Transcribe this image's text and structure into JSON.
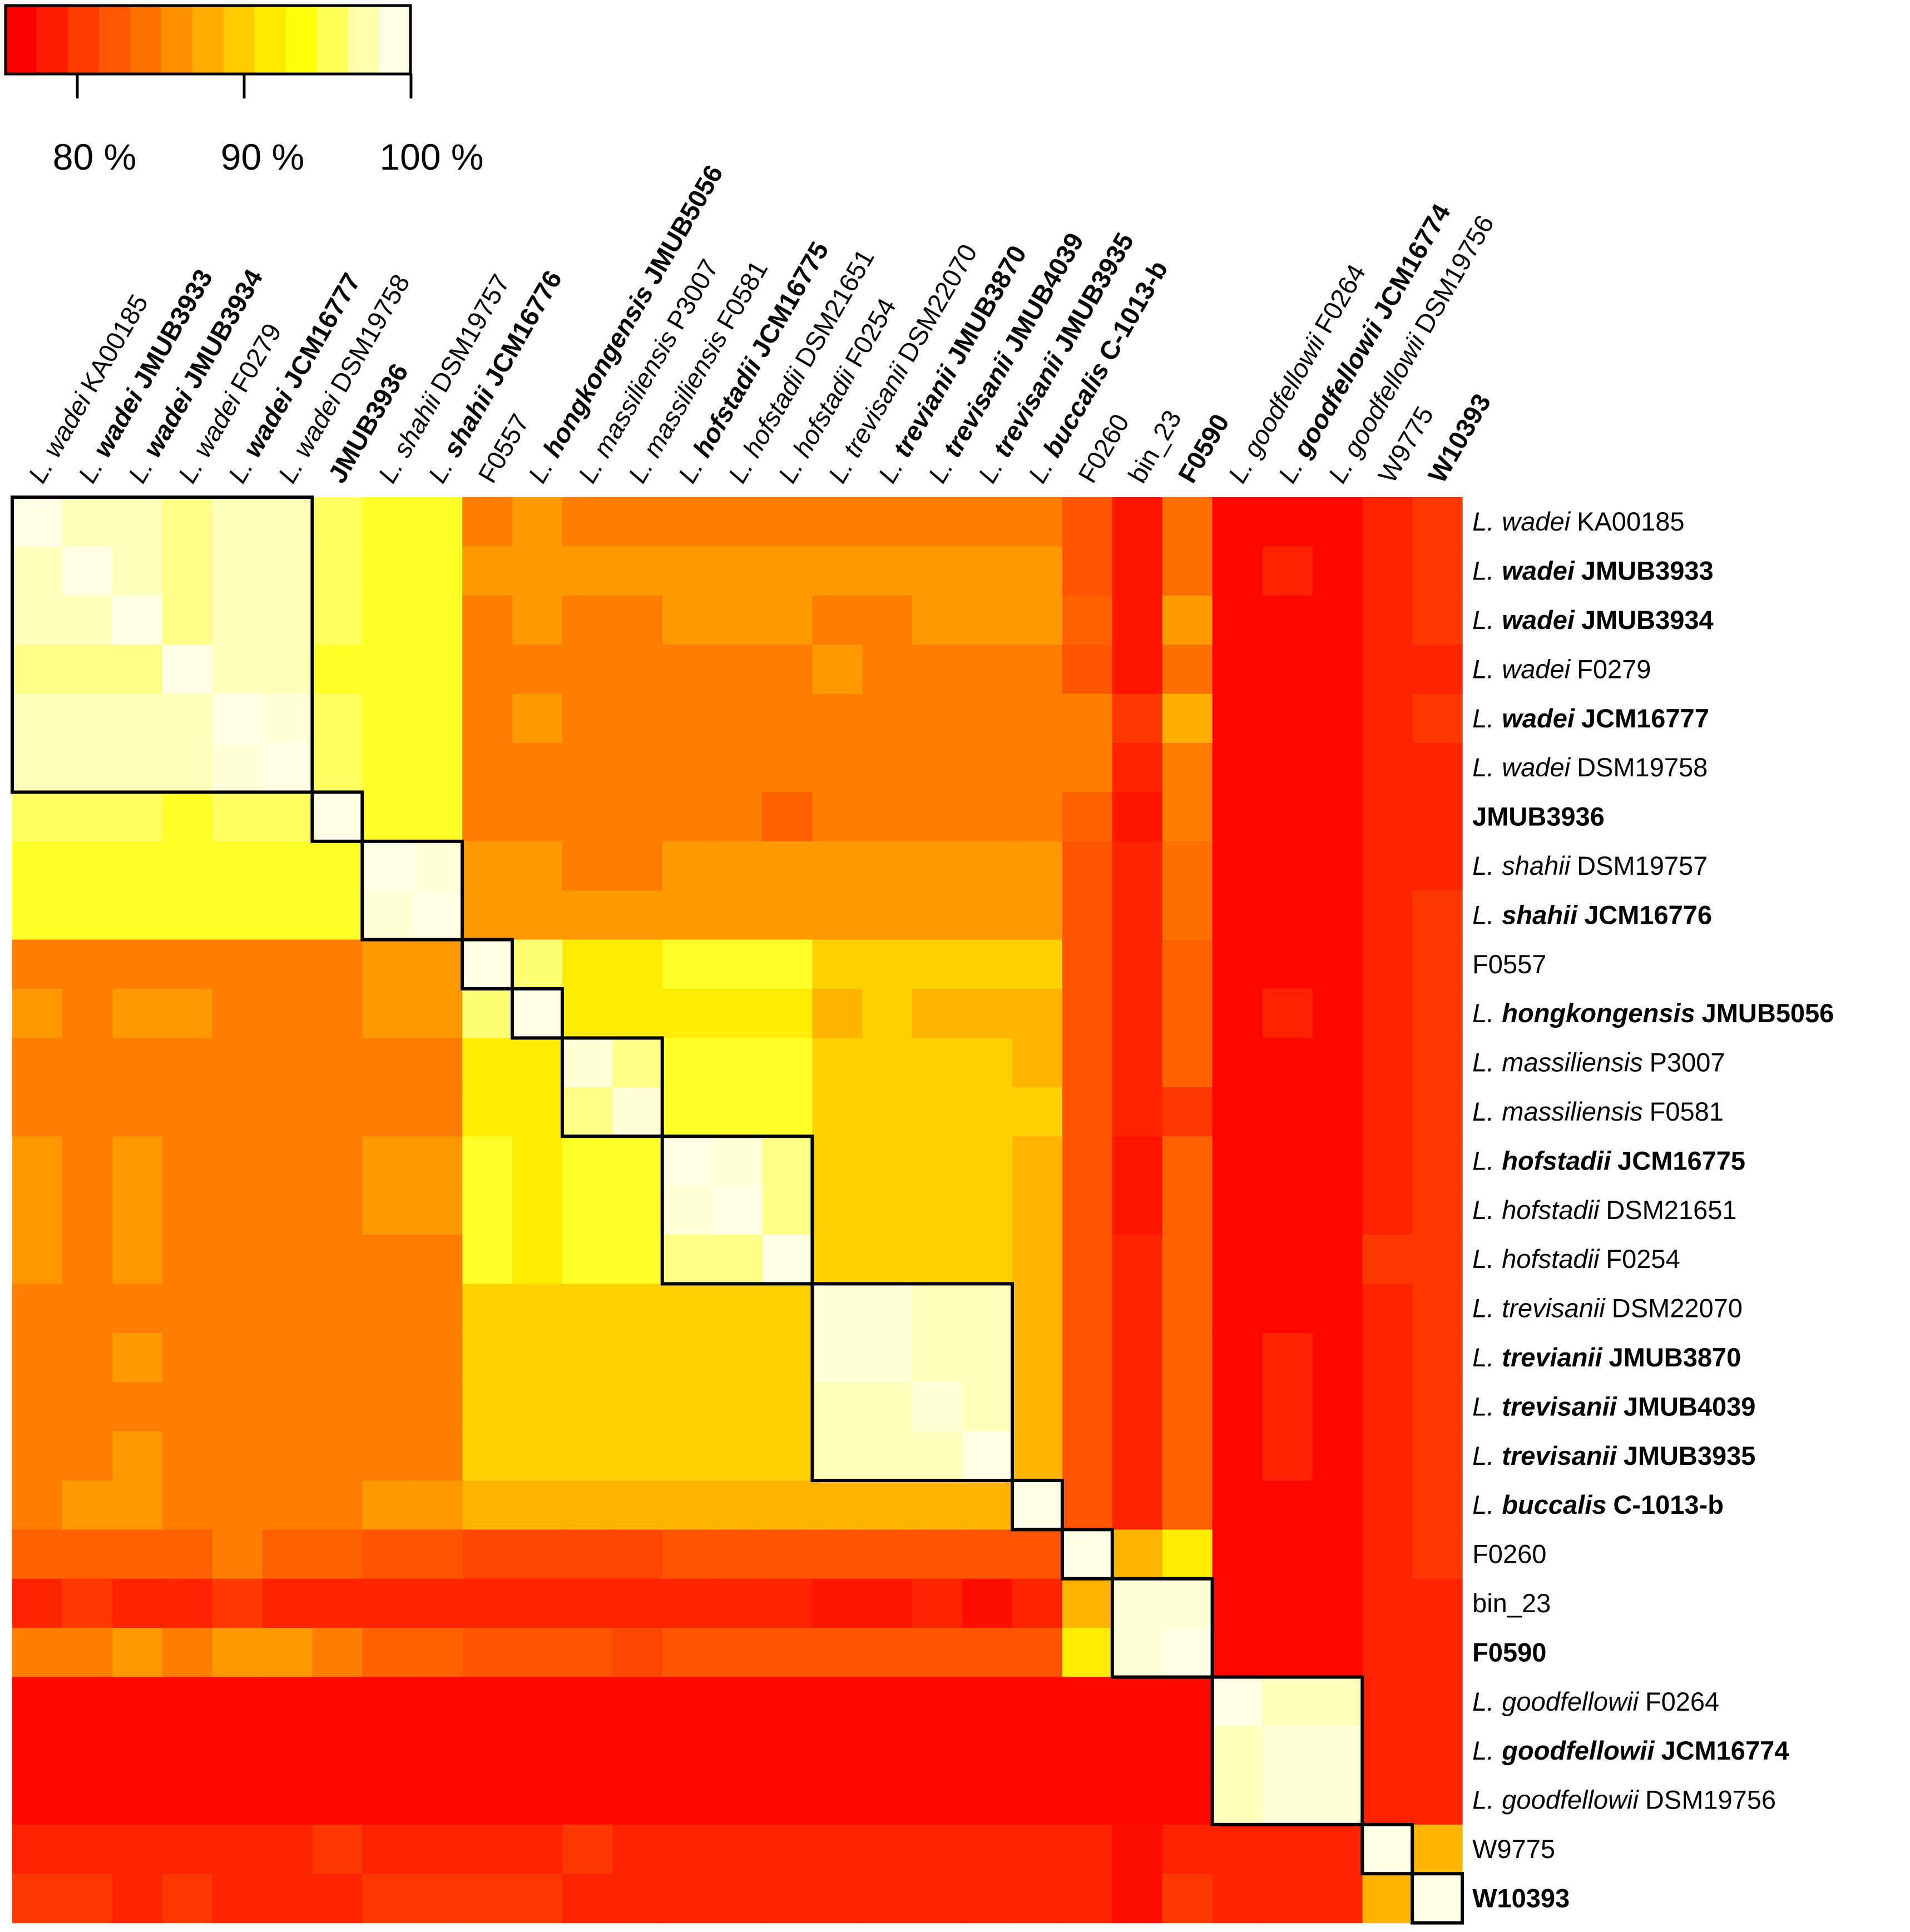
{
  "chart_data": {
    "type": "heatmap",
    "title": "",
    "colorbar": {
      "tick_labels": [
        "80 %",
        "90 %",
        "100 %"
      ],
      "tick_values": [
        80,
        90,
        100
      ],
      "range": [
        75,
        100
      ],
      "colors": [
        "#ff0000",
        "#ff1d00",
        "#ff3a00",
        "#ff5700",
        "#ff7400",
        "#ff9100",
        "#ffae00",
        "#ffcb00",
        "#ffe800",
        "#ffff0a",
        "#ffff5a",
        "#ffffaa",
        "#ffffe6"
      ]
    },
    "rows": [
      {
        "genus": "L.",
        "species": "wadei",
        "strain": "KA00185",
        "bold": false
      },
      {
        "genus": "L.",
        "species": "wadei",
        "strain": "JMUB3933",
        "bold": true
      },
      {
        "genus": "L.",
        "species": "wadei",
        "strain": "JMUB3934",
        "bold": true
      },
      {
        "genus": "L.",
        "species": "wadei",
        "strain": "F0279",
        "bold": false
      },
      {
        "genus": "L.",
        "species": "wadei",
        "strain": "JCM16777",
        "bold": true
      },
      {
        "genus": "L.",
        "species": "wadei",
        "strain": "DSM19758",
        "bold": false
      },
      {
        "genus": "",
        "species": "",
        "strain": "JMUB3936",
        "bold": true
      },
      {
        "genus": "L.",
        "species": "shahii",
        "strain": "DSM19757",
        "bold": false
      },
      {
        "genus": "L.",
        "species": "shahii",
        "strain": "JCM16776",
        "bold": true
      },
      {
        "genus": "",
        "species": "",
        "strain": "F0557",
        "bold": false
      },
      {
        "genus": "L.",
        "species": "hongkongensis",
        "strain": "JMUB5056",
        "bold": true
      },
      {
        "genus": "L.",
        "species": "massiliensis",
        "strain": "P3007",
        "bold": false
      },
      {
        "genus": "L.",
        "species": "massiliensis",
        "strain": "F0581",
        "bold": false
      },
      {
        "genus": "L.",
        "species": "hofstadii",
        "strain": "JCM16775",
        "bold": true
      },
      {
        "genus": "L.",
        "species": "hofstadii",
        "strain": "DSM21651",
        "bold": false
      },
      {
        "genus": "L.",
        "species": "hofstadii",
        "strain": "F0254",
        "bold": false
      },
      {
        "genus": "L.",
        "species": "trevisanii",
        "strain": "DSM22070",
        "bold": false
      },
      {
        "genus": "L.",
        "species": "trevianii",
        "strain": "JMUB3870",
        "bold": true
      },
      {
        "genus": "L.",
        "species": "trevisanii",
        "strain": "JMUB4039",
        "bold": true
      },
      {
        "genus": "L.",
        "species": "trevisanii",
        "strain": "JMUB3935",
        "bold": true
      },
      {
        "genus": "L.",
        "species": "buccalis",
        "strain": "C-1013-b",
        "bold": true
      },
      {
        "genus": "",
        "species": "",
        "strain": "F0260",
        "bold": false
      },
      {
        "genus": "",
        "species": "",
        "strain": "bin_23",
        "bold": false
      },
      {
        "genus": "",
        "species": "",
        "strain": "F0590",
        "bold": true
      },
      {
        "genus": "L.",
        "species": "goodfellowii",
        "strain": "F0264",
        "bold": false
      },
      {
        "genus": "L.",
        "species": "goodfellowii",
        "strain": "JCM16774",
        "bold": true
      },
      {
        "genus": "L.",
        "species": "goodfellowii",
        "strain": "DSM19756",
        "bold": false
      },
      {
        "genus": "",
        "species": "",
        "strain": "W9775",
        "bold": false
      },
      {
        "genus": "",
        "species": "",
        "strain": "W10393",
        "bold": true
      }
    ],
    "clusters": [
      [
        0,
        5
      ],
      [
        6,
        6
      ],
      [
        7,
        8
      ],
      [
        9,
        9
      ],
      [
        10,
        10
      ],
      [
        11,
        12
      ],
      [
        13,
        15
      ],
      [
        16,
        19
      ],
      [
        20,
        20
      ],
      [
        21,
        21
      ],
      [
        22,
        23
      ],
      [
        24,
        26
      ],
      [
        27,
        27
      ],
      [
        28,
        28
      ]
    ],
    "values": [
      [
        100,
        98.5,
        98.5,
        97,
        98.5,
        98.5,
        96,
        94.5,
        94.5,
        84,
        86,
        84,
        84,
        84,
        84,
        84,
        84,
        84,
        84,
        84,
        84,
        81,
        76.5,
        83,
        75.5,
        75.5,
        75.5,
        77.5,
        79
      ],
      [
        98.5,
        100,
        98.5,
        97,
        98.5,
        98.5,
        96,
        94.5,
        94.5,
        86,
        86,
        86,
        86,
        86,
        86,
        86,
        86,
        86,
        86,
        86,
        86,
        81,
        76.5,
        83,
        75.5,
        77.5,
        75.5,
        77.5,
        79
      ],
      [
        98.5,
        98.5,
        100,
        97,
        98.5,
        98.5,
        96,
        94.5,
        94.5,
        84,
        86,
        84,
        84,
        86,
        86,
        86,
        84,
        84,
        86,
        86,
        86,
        82,
        76.5,
        86,
        75.5,
        75.5,
        75.5,
        77.5,
        79
      ],
      [
        97,
        97,
        97,
        100,
        98.5,
        98.5,
        94.5,
        94.5,
        94.5,
        84,
        84,
        84,
        84,
        84,
        84,
        84,
        86,
        84,
        84,
        84,
        84,
        81,
        76.5,
        83,
        75.5,
        75.5,
        75.5,
        77.5,
        77.5
      ],
      [
        98.5,
        98.5,
        98.5,
        98.5,
        100,
        99.5,
        96,
        94.5,
        94.5,
        84,
        86,
        84,
        84,
        84,
        84,
        84,
        84,
        84,
        84,
        84,
        84,
        84,
        79,
        87.5,
        75.5,
        75.5,
        75.5,
        77.5,
        79
      ],
      [
        98.5,
        98.5,
        98.5,
        98.5,
        99.5,
        100,
        96,
        94.5,
        94.5,
        84,
        84,
        84,
        84,
        84,
        84,
        84,
        84,
        84,
        84,
        84,
        84,
        84,
        77.5,
        84,
        75.5,
        75.5,
        75.5,
        77.5,
        77.5
      ],
      [
        96,
        96,
        96,
        94.5,
        96,
        96,
        100,
        94.5,
        94.5,
        84,
        84,
        84,
        84,
        84,
        84,
        82,
        84,
        84,
        84,
        84,
        84,
        82,
        76.5,
        84,
        75.5,
        75.5,
        75.5,
        77.5,
        77.5
      ],
      [
        94.5,
        94.5,
        94.5,
        94.5,
        94.5,
        94.5,
        94.5,
        100,
        99.5,
        86,
        86,
        84,
        84,
        86,
        86,
        86,
        86,
        86,
        86,
        86,
        86,
        81,
        77.5,
        83,
        75.5,
        75.5,
        75.5,
        77.5,
        77.5
      ],
      [
        94.5,
        94.5,
        94.5,
        94.5,
        94.5,
        94.5,
        94.5,
        99.5,
        100,
        86,
        86,
        86,
        86,
        86,
        86,
        86,
        86,
        86,
        86,
        86,
        86,
        81,
        77.5,
        83,
        75.5,
        75.5,
        75.5,
        77.5,
        79
      ],
      [
        84,
        84,
        84,
        84,
        84,
        84,
        84,
        86,
        86,
        100,
        96.5,
        92,
        92,
        94.5,
        94.5,
        94.5,
        90,
        90,
        90,
        90,
        90,
        81,
        77.5,
        82,
        75.5,
        75.5,
        75.5,
        77.5,
        79
      ],
      [
        86,
        84,
        86,
        86,
        84,
        84,
        84,
        86,
        86,
        96.5,
        100,
        92,
        92,
        92,
        92,
        92,
        88,
        90,
        88,
        88,
        88,
        81,
        77.5,
        82,
        75.5,
        77.5,
        75.5,
        77.5,
        79
      ],
      [
        84,
        84,
        84,
        84,
        84,
        84,
        84,
        84,
        84,
        92,
        92,
        99.5,
        97,
        94.5,
        94.5,
        94.5,
        90,
        90,
        90,
        90,
        88,
        81,
        77.5,
        82,
        75.5,
        75.5,
        75.5,
        77.5,
        79
      ],
      [
        84,
        84,
        84,
        84,
        84,
        84,
        84,
        84,
        84,
        92,
        92,
        97,
        99.5,
        94.5,
        94.5,
        94.5,
        90,
        90,
        90,
        90,
        90,
        81,
        77.5,
        79,
        75.5,
        75.5,
        75.5,
        77.5,
        79
      ],
      [
        86,
        84,
        86,
        84,
        84,
        84,
        84,
        86,
        86,
        94.5,
        92,
        94.5,
        94.5,
        100,
        99.5,
        97,
        90,
        90,
        90,
        90,
        88,
        81,
        76.5,
        82,
        75.5,
        75.5,
        75.5,
        77.5,
        79
      ],
      [
        86,
        84,
        86,
        84,
        84,
        84,
        84,
        86,
        86,
        94.5,
        92,
        94.5,
        94.5,
        99.5,
        100,
        97,
        90,
        90,
        90,
        90,
        88,
        81,
        76.5,
        82,
        75.5,
        75.5,
        75.5,
        77.5,
        79
      ],
      [
        86,
        84,
        86,
        84,
        84,
        84,
        84,
        84,
        84,
        94.5,
        92,
        94.5,
        94.5,
        97,
        97,
        100,
        90,
        90,
        90,
        90,
        88,
        81,
        77.5,
        82,
        75.5,
        75.5,
        75.5,
        79,
        79
      ],
      [
        84,
        84,
        84,
        84,
        84,
        84,
        84,
        84,
        84,
        90,
        90,
        90,
        90,
        90,
        90,
        90,
        99.5,
        99.5,
        98.5,
        98.5,
        88,
        81,
        77.5,
        82,
        75.5,
        75.5,
        75.5,
        77.5,
        79
      ],
      [
        84,
        84,
        86,
        84,
        84,
        84,
        84,
        84,
        84,
        90,
        90,
        90,
        90,
        90,
        90,
        90,
        99.5,
        99.5,
        98.5,
        98.5,
        88,
        81,
        77.5,
        82,
        75.5,
        77.5,
        75.5,
        77.5,
        79
      ],
      [
        84,
        84,
        84,
        84,
        84,
        84,
        84,
        84,
        84,
        90,
        90,
        90,
        90,
        90,
        90,
        90,
        98.5,
        98.5,
        99.5,
        98.5,
        88,
        81,
        77.5,
        82,
        75.5,
        77.5,
        75.5,
        77.5,
        79
      ],
      [
        84,
        84,
        86,
        84,
        84,
        84,
        84,
        84,
        84,
        90,
        90,
        90,
        90,
        90,
        90,
        90,
        98.5,
        98.5,
        98.5,
        100,
        88,
        81,
        77.5,
        82,
        75.5,
        77.5,
        75.5,
        77.5,
        79
      ],
      [
        84,
        86,
        86,
        84,
        84,
        84,
        84,
        86,
        86,
        88,
        88,
        88,
        88,
        88,
        88,
        88,
        88,
        88,
        88,
        88,
        100,
        81,
        77.5,
        82,
        75.5,
        75.5,
        75.5,
        77.5,
        79
      ],
      [
        82,
        82,
        82,
        82,
        84,
        82,
        82,
        81,
        81,
        80,
        80,
        80,
        80,
        81,
        81,
        81,
        81,
        81,
        81,
        81,
        81,
        100,
        88,
        92,
        75.5,
        75.5,
        75.5,
        77.5,
        79
      ],
      [
        77.5,
        79,
        77.5,
        77.5,
        79,
        77.5,
        77.5,
        77.5,
        77.5,
        77.5,
        77.5,
        77.5,
        77.5,
        77.5,
        77.5,
        77.5,
        76.5,
        76.5,
        77.5,
        76,
        77.5,
        88,
        99.5,
        99.5,
        75.5,
        75.5,
        75.5,
        77.5,
        77.5
      ],
      [
        84,
        84,
        86,
        84,
        86,
        86,
        84,
        82,
        82,
        81,
        81,
        81,
        80,
        81,
        81,
        81,
        81,
        81,
        81,
        81,
        81,
        92,
        99.5,
        100,
        75.5,
        75.5,
        75.5,
        77.5,
        77.5
      ],
      [
        75.5,
        75.5,
        75.5,
        75.5,
        75.5,
        75.5,
        75.5,
        75.5,
        75.5,
        75.5,
        75.5,
        75.5,
        75.5,
        75.5,
        75.5,
        75.5,
        75.5,
        75.5,
        75.5,
        75.5,
        75.5,
        75.5,
        75.5,
        75.5,
        100,
        98.5,
        98.5,
        77.5,
        77.5
      ],
      [
        75.5,
        75.5,
        75.5,
        75.5,
        75.5,
        75.5,
        75.5,
        75.5,
        75.5,
        75.5,
        75.5,
        75.5,
        75.5,
        75.5,
        75.5,
        75.5,
        75.5,
        75.5,
        75.5,
        75.5,
        75.5,
        75.5,
        75.5,
        75.5,
        98.5,
        99.5,
        99.5,
        77.5,
        77.5
      ],
      [
        75.5,
        75.5,
        75.5,
        75.5,
        75.5,
        75.5,
        75.5,
        75.5,
        75.5,
        75.5,
        75.5,
        75.5,
        75.5,
        75.5,
        75.5,
        75.5,
        75.5,
        75.5,
        75.5,
        75.5,
        75.5,
        75.5,
        75.5,
        75.5,
        98.5,
        99.5,
        99.5,
        77.5,
        77.5
      ],
      [
        77.5,
        77.5,
        77.5,
        77.5,
        77.5,
        77.5,
        79,
        77.5,
        77.5,
        77.5,
        77.5,
        79,
        77.5,
        77.5,
        77.5,
        77.5,
        77.5,
        77.5,
        77.5,
        77.5,
        77.5,
        77.5,
        76,
        77.5,
        77.5,
        77.5,
        77.5,
        100,
        88
      ],
      [
        79,
        79,
        77.5,
        79,
        77.5,
        77.5,
        77.5,
        79,
        79,
        79,
        79,
        77.5,
        77.5,
        77.5,
        77.5,
        77.5,
        77.5,
        77.5,
        77.5,
        77.5,
        77.5,
        77.5,
        76,
        79,
        77.5,
        77.5,
        77.5,
        88,
        100
      ]
    ]
  }
}
